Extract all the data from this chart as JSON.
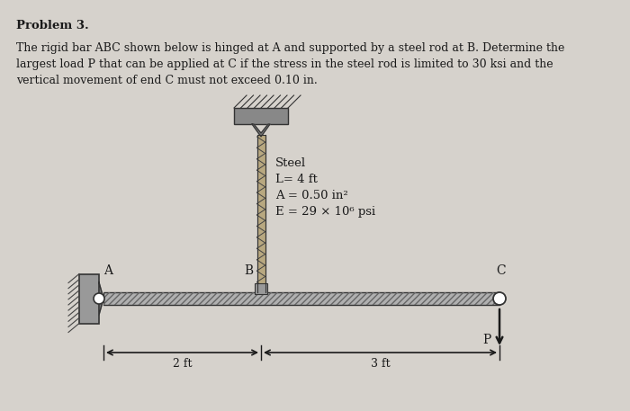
{
  "background_color": "#d6d2cc",
  "text_color": "#1a1a1a",
  "title": "Problem 3.",
  "problem_text_line1": "The rigid bar ABC shown below is hinged at A and supported by a steel rod at B. Determine the",
  "problem_text_line2": "largest load P that can be applied at C if the stress in the steel rod is limited to 30 ksi and the",
  "problem_text_line3": "vertical movement of end C must not exceed 0.10 in.",
  "steel_label_line1": "Steel",
  "steel_label_line2": "L= 4 ft",
  "steel_label_line3": "A = 0.50 in²",
  "steel_label_line4": "E = 29 × 10⁶ psi",
  "label_A": "A",
  "label_B": "B",
  "label_C": "C",
  "label_P": "P",
  "dim_left": "2 ft",
  "dim_right": "3 ft",
  "bar_color": "#b0b0b0",
  "rod_color": "#8a7a60",
  "wall_color": "#909090",
  "hatch_color": "#555555"
}
